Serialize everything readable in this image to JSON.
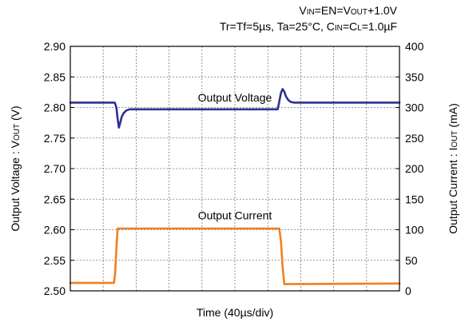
{
  "header": {
    "line1": {
      "vin_main": "V",
      "vin_sub": "IN",
      "eq1": "=EN=",
      "vout_main": "V",
      "vout_sub": "OUT",
      "tail": "+1.0V"
    },
    "line2": {
      "pre": "Tr=Tf=5µs, Ta=25°C, ",
      "cin_main": "C",
      "cin_sub": "IN",
      "mid": "=",
      "cl_main": "C",
      "cl_sub": "L",
      "tail": "=1.0µF"
    }
  },
  "chart_data": {
    "type": "line",
    "title": "",
    "xlabel": "Time (40µs/div)",
    "ylabel_left": "Output Voltage : VOUT (V)",
    "ylabel_right": "Output Current : IOUT (mA)",
    "ylim_left": [
      2.5,
      2.9
    ],
    "ylim_right": [
      0,
      400
    ],
    "yticks_left": [
      "2.90",
      "2.85",
      "2.80",
      "2.75",
      "2.70",
      "2.65",
      "2.60",
      "2.55",
      "2.50"
    ],
    "yticks_right": [
      "400",
      "350",
      "300",
      "250",
      "200",
      "150",
      "100",
      "50",
      "0"
    ],
    "x_divisions": 10,
    "xlim": [
      0,
      400
    ],
    "grid": true,
    "series": [
      {
        "name": "Output Voltage",
        "axis": "left",
        "color": "#2e3191",
        "x": [
          0,
          54,
          56,
          57.5,
          59,
          60.5,
          62.5,
          65,
          68,
          72,
          80,
          150,
          200,
          252,
          254,
          256,
          258,
          260,
          262,
          265,
          268,
          272,
          280,
          340,
          400
        ],
        "y": [
          2.808,
          2.808,
          2.8,
          2.782,
          2.767,
          2.774,
          2.785,
          2.791,
          2.795,
          2.797,
          2.797,
          2.797,
          2.797,
          2.797,
          2.81,
          2.824,
          2.83,
          2.826,
          2.818,
          2.812,
          2.809,
          2.808,
          2.808,
          2.808,
          2.808
        ]
      },
      {
        "name": "Output Current",
        "axis": "right",
        "color": "#f07f22",
        "x": [
          0,
          53,
          54.5,
          56,
          57.5,
          150,
          200,
          254,
          256,
          258,
          260,
          400
        ],
        "y": [
          13,
          13,
          28,
          70,
          102,
          102,
          102,
          102,
          80,
          40,
          11,
          12
        ]
      }
    ],
    "annotations": [
      {
        "text": "Output Voltage",
        "x": 200,
        "y": 2.81,
        "axis": "left"
      },
      {
        "text": "Output Current",
        "x": 200,
        "y": 2.617,
        "axis": "left"
      }
    ]
  }
}
